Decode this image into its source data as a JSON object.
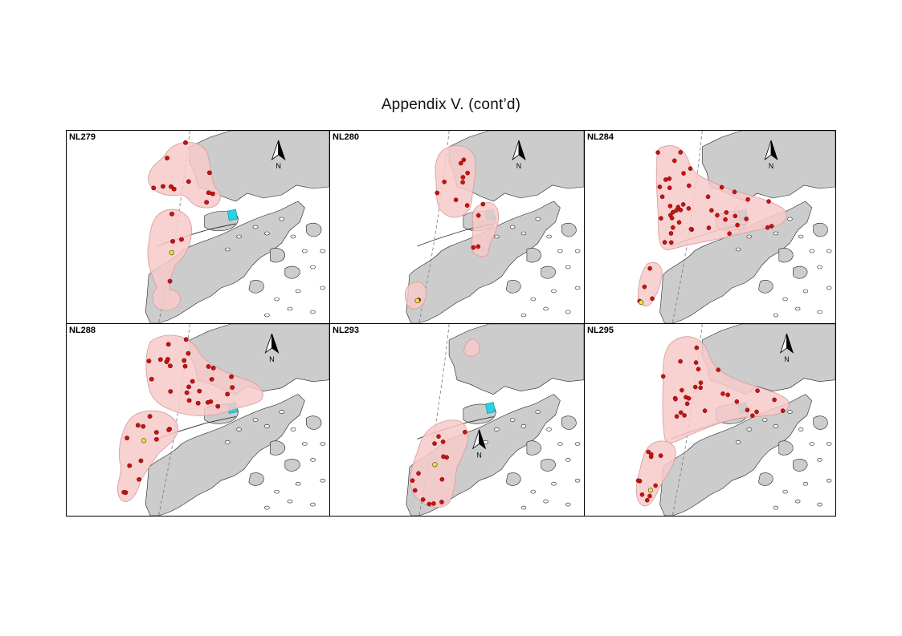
{
  "title": "Appendix V.  (cont’d)",
  "north_label": "N",
  "colors": {
    "land": "#cccccc",
    "coast": "#222222",
    "range": "#f7c9c9",
    "range_edge": "#d79a9a",
    "location": "#cc1111",
    "capture_site": "#f5e23a",
    "facility": "#27d3e3",
    "boundary": "#777777"
  },
  "panels": [
    {
      "id": "NL279",
      "location_count": 15,
      "has_capture_site": true
    },
    {
      "id": "NL280",
      "location_count": 14,
      "has_capture_site": true
    },
    {
      "id": "NL284",
      "location_count": 48,
      "has_capture_site": true
    },
    {
      "id": "NL288",
      "location_count": 40,
      "has_capture_site": true
    },
    {
      "id": "NL293",
      "location_count": 14,
      "has_capture_site": true
    },
    {
      "id": "NL295",
      "location_count": 38,
      "has_capture_site": true
    }
  ]
}
